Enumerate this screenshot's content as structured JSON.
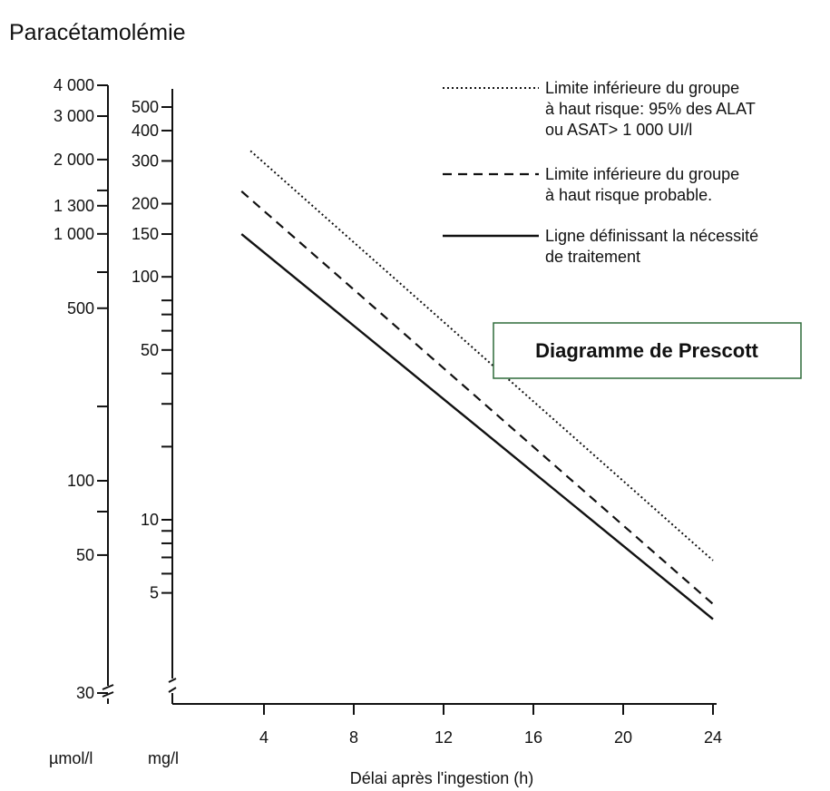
{
  "chart_data": {
    "type": "line",
    "title": "Paracétamolémie",
    "subtitle": "Diagramme de Prescott",
    "xlabel": "Délai après l'ingestion (h)",
    "xlim": [
      2.7,
      24
    ],
    "x_ticks": [
      4,
      8,
      12,
      16,
      20,
      24
    ],
    "y_scale": "log",
    "y_axes": [
      {
        "unit": "µmol/l",
        "ylim": [
          30,
          4000
        ],
        "tick_labels": [
          "4 000",
          "3 000",
          "2 000",
          "1 300",
          "1 000",
          "500",
          "100",
          "50",
          "30"
        ],
        "tick_values": [
          4000,
          3000,
          2000,
          1300,
          1000,
          500,
          100,
          50,
          30
        ]
      },
      {
        "unit": "mg/l",
        "ylim": [
          4,
          500
        ],
        "tick_labels": [
          "500",
          "400",
          "300",
          "200",
          "150",
          "100",
          "50",
          "10",
          "5"
        ],
        "tick_values": [
          500,
          400,
          300,
          200,
          150,
          100,
          50,
          10,
          5
        ]
      }
    ],
    "series": [
      {
        "name": "Limite inférieure du groupe à haut risque: 95% des ALAT ou ASAT> 1 000 UI/l",
        "style": "dotted",
        "unit": "mg/l",
        "points": [
          [
            3.4,
            330
          ],
          [
            24,
            6.8
          ]
        ]
      },
      {
        "name": "Limite inférieure du groupe à haut risque probable.",
        "style": "dashed",
        "unit": "mg/l",
        "points": [
          [
            3.0,
            225
          ],
          [
            24,
            4.5
          ]
        ]
      },
      {
        "name": "Ligne définissant la nécessité de traitement",
        "style": "solid",
        "unit": "mg/l",
        "points": [
          [
            3.0,
            150
          ],
          [
            24,
            3.9
          ]
        ]
      }
    ],
    "legend_lines": [
      [
        "Limite inférieure du groupe",
        "à haut risque: 95% des ALAT",
        "ou ASAT> 1 000 UI/l"
      ],
      [
        "Limite inférieure du groupe",
        "à haut risque probable."
      ],
      [
        "Ligne définissant la nécessité",
        "de traitement"
      ]
    ],
    "legend_position": "top-right",
    "grid": false
  }
}
